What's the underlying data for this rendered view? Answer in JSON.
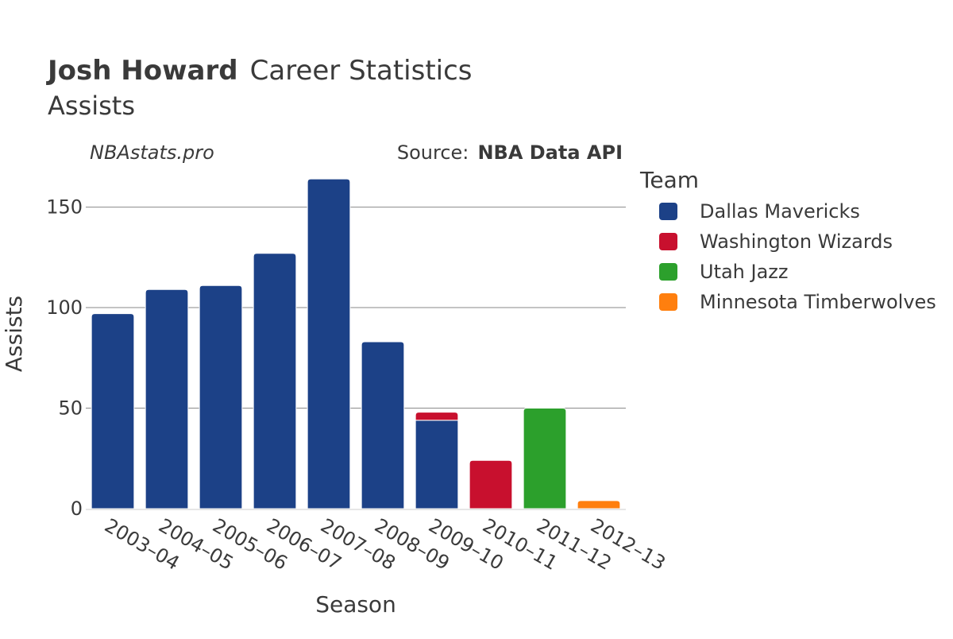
{
  "chart_data": {
    "type": "bar",
    "stacked": true,
    "title_bold": "Josh Howard",
    "title_rest": "Career Statistics",
    "subtitle": "Assists",
    "watermark": "NBAstats.pro",
    "source_label": "Source:",
    "source_value": "NBA Data API",
    "xlabel": "Season",
    "ylabel": "Assists",
    "ylim": [
      0,
      170
    ],
    "yticks": [
      0,
      50,
      100,
      150
    ],
    "grid": true,
    "legend_title": "Team",
    "legend_position": "right",
    "categories": [
      "2003–04",
      "2004–05",
      "2005–06",
      "2006–07",
      "2007–08",
      "2008–09",
      "2009–10",
      "2010–11",
      "2011–12",
      "2012–13"
    ],
    "series": [
      {
        "name": "Dallas Mavericks",
        "color": "#1c4187",
        "values": [
          97,
          109,
          111,
          127,
          164,
          83,
          44,
          0,
          0,
          0
        ]
      },
      {
        "name": "Washington Wizards",
        "color": "#c8102e",
        "values": [
          0,
          0,
          0,
          0,
          0,
          0,
          4,
          24,
          0,
          0
        ]
      },
      {
        "name": "Utah Jazz",
        "color": "#2ca02c",
        "values": [
          0,
          0,
          0,
          0,
          0,
          0,
          0,
          0,
          50,
          0
        ]
      },
      {
        "name": "Minnesota Timberwolves",
        "color": "#ff7f0e",
        "values": [
          0,
          0,
          0,
          0,
          0,
          0,
          0,
          0,
          0,
          4
        ]
      }
    ]
  }
}
